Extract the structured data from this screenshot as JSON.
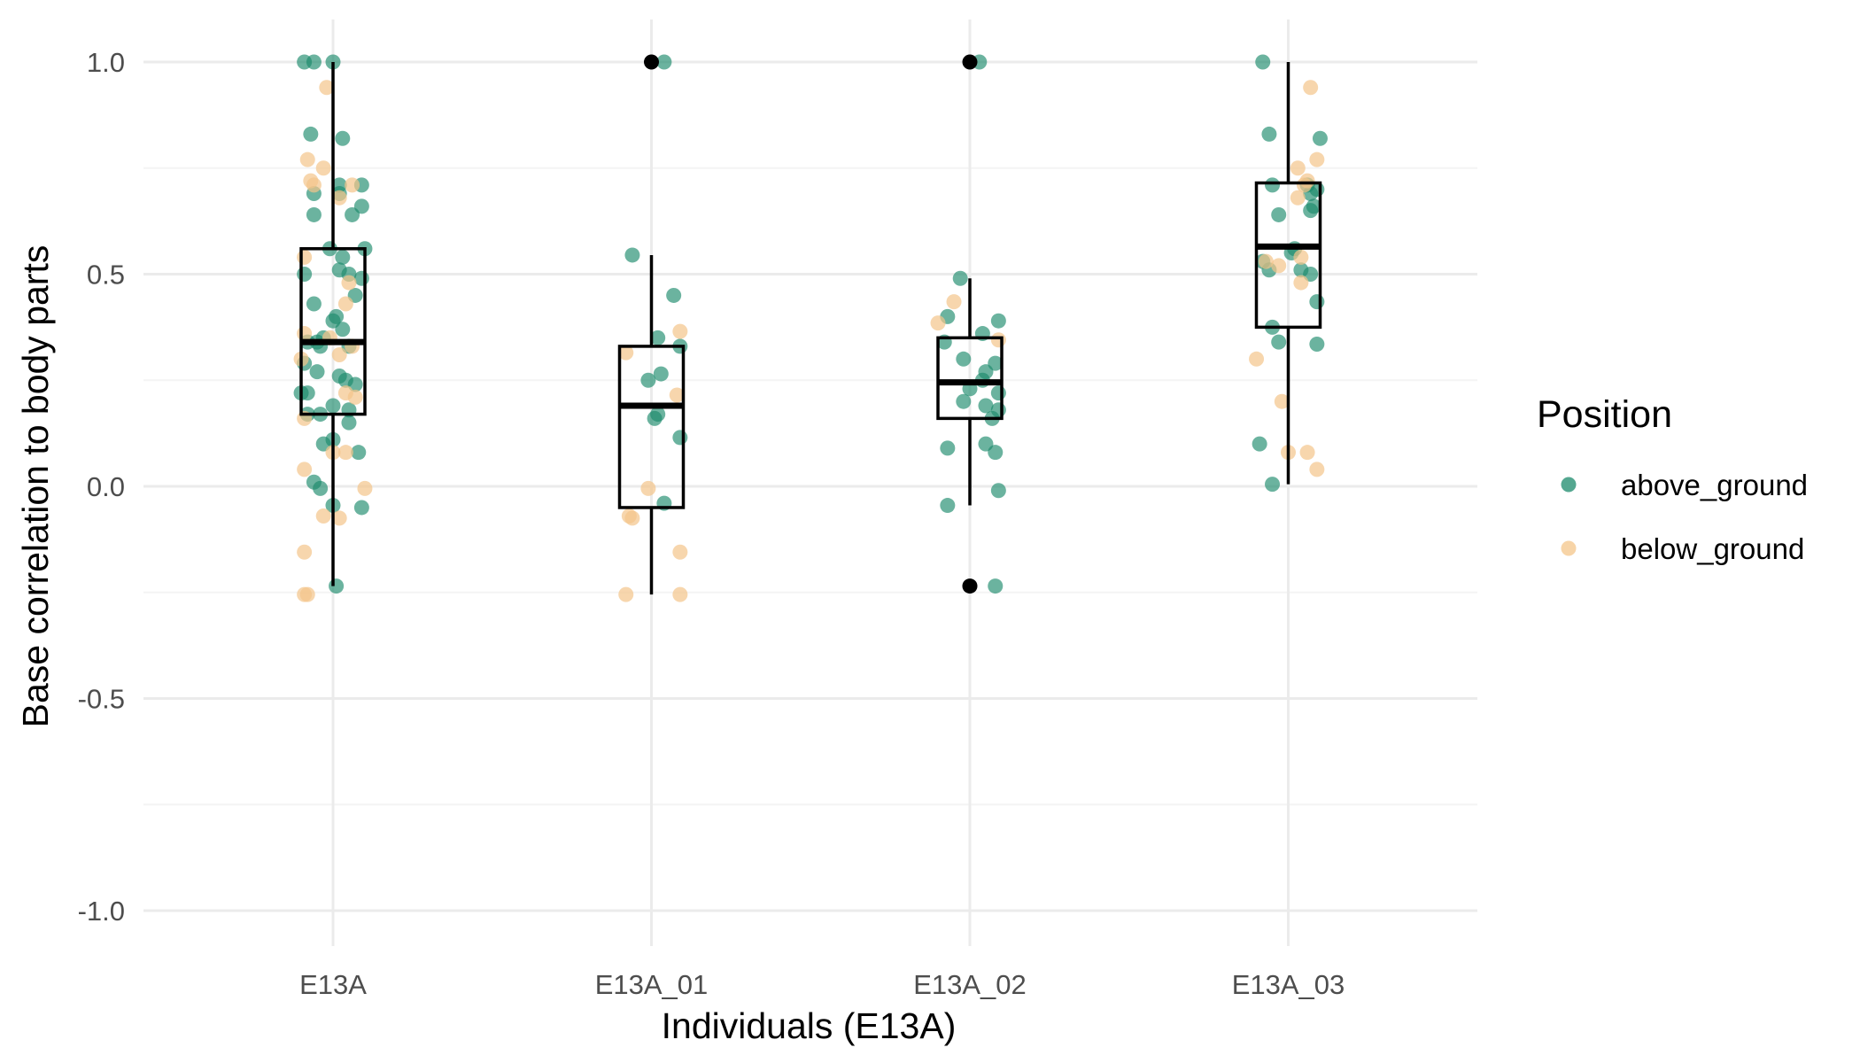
{
  "chart_data": {
    "type": "box",
    "xlabel": "Individuals (E13A)",
    "ylabel": "Base correlation to body parts",
    "ylim": [
      -1.1,
      1.1
    ],
    "yticks": [
      1.0,
      0.5,
      0.0,
      -0.5,
      -1.0
    ],
    "ytick_labels": [
      "1.0",
      "0.5",
      "0.0",
      "-0.5",
      "-1.0"
    ],
    "grid": true,
    "categories": [
      "E13A",
      "E13A_01",
      "E13A_02",
      "E13A_03"
    ],
    "legend": {
      "title": "Position",
      "placement": "right",
      "items": [
        {
          "label": "above_ground",
          "color": "#1b8a6b"
        },
        {
          "label": "below_ground",
          "color": "#f4c58a"
        }
      ]
    },
    "boxes": [
      {
        "category": "E13A",
        "q1": 0.17,
        "median": 0.34,
        "q3": 0.56,
        "whisker_low": -0.235,
        "whisker_high": 1.0,
        "outliers": []
      },
      {
        "category": "E13A_01",
        "q1": -0.05,
        "median": 0.19,
        "q3": 0.33,
        "whisker_low": -0.255,
        "whisker_high": 0.545,
        "outliers": [
          1.0
        ]
      },
      {
        "category": "E13A_02",
        "q1": 0.16,
        "median": 0.245,
        "q3": 0.35,
        "whisker_low": -0.045,
        "whisker_high": 0.49,
        "outliers": [
          1.0,
          -0.235
        ]
      },
      {
        "category": "E13A_03",
        "q1": 0.375,
        "median": 0.565,
        "q3": 0.715,
        "whisker_low": 0.005,
        "whisker_high": 1.0,
        "outliers": []
      }
    ],
    "series": [
      {
        "name": "above_ground",
        "color": "#1b8a6b",
        "points": [
          {
            "category": "E13A",
            "jitter": -0.09,
            "y": 1.0
          },
          {
            "category": "E13A",
            "jitter": -0.06,
            "y": 1.0
          },
          {
            "category": "E13A",
            "jitter": 0.0,
            "y": 1.0
          },
          {
            "category": "E13A",
            "jitter": -0.07,
            "y": 0.83
          },
          {
            "category": "E13A",
            "jitter": 0.03,
            "y": 0.82
          },
          {
            "category": "E13A",
            "jitter": 0.02,
            "y": 0.71
          },
          {
            "category": "E13A",
            "jitter": 0.09,
            "y": 0.71
          },
          {
            "category": "E13A",
            "jitter": -0.06,
            "y": 0.69
          },
          {
            "category": "E13A",
            "jitter": 0.02,
            "y": 0.69
          },
          {
            "category": "E13A",
            "jitter": 0.09,
            "y": 0.66
          },
          {
            "category": "E13A",
            "jitter": -0.06,
            "y": 0.64
          },
          {
            "category": "E13A",
            "jitter": 0.06,
            "y": 0.64
          },
          {
            "category": "E13A",
            "jitter": -0.01,
            "y": 0.56
          },
          {
            "category": "E13A",
            "jitter": 0.1,
            "y": 0.56
          },
          {
            "category": "E13A",
            "jitter": 0.03,
            "y": 0.54
          },
          {
            "category": "E13A",
            "jitter": 0.02,
            "y": 0.51
          },
          {
            "category": "E13A",
            "jitter": 0.05,
            "y": 0.5
          },
          {
            "category": "E13A",
            "jitter": -0.09,
            "y": 0.5
          },
          {
            "category": "E13A",
            "jitter": 0.09,
            "y": 0.49
          },
          {
            "category": "E13A",
            "jitter": 0.07,
            "y": 0.45
          },
          {
            "category": "E13A",
            "jitter": -0.06,
            "y": 0.43
          },
          {
            "category": "E13A",
            "jitter": 0.0,
            "y": 0.39
          },
          {
            "category": "E13A",
            "jitter": 0.01,
            "y": 0.4
          },
          {
            "category": "E13A",
            "jitter": 0.03,
            "y": 0.37
          },
          {
            "category": "E13A",
            "jitter": -0.03,
            "y": 0.35
          },
          {
            "category": "E13A",
            "jitter": -0.08,
            "y": 0.34
          },
          {
            "category": "E13A",
            "jitter": -0.05,
            "y": 0.34
          },
          {
            "category": "E13A",
            "jitter": -0.04,
            "y": 0.33
          },
          {
            "category": "E13A",
            "jitter": 0.05,
            "y": 0.33
          },
          {
            "category": "E13A",
            "jitter": -0.09,
            "y": 0.29
          },
          {
            "category": "E13A",
            "jitter": -0.05,
            "y": 0.27
          },
          {
            "category": "E13A",
            "jitter": 0.02,
            "y": 0.26
          },
          {
            "category": "E13A",
            "jitter": 0.04,
            "y": 0.25
          },
          {
            "category": "E13A",
            "jitter": 0.07,
            "y": 0.24
          },
          {
            "category": "E13A",
            "jitter": -0.1,
            "y": 0.22
          },
          {
            "category": "E13A",
            "jitter": -0.08,
            "y": 0.22
          },
          {
            "category": "E13A",
            "jitter": 0.0,
            "y": 0.19
          },
          {
            "category": "E13A",
            "jitter": 0.05,
            "y": 0.18
          },
          {
            "category": "E13A",
            "jitter": -0.08,
            "y": 0.17
          },
          {
            "category": "E13A",
            "jitter": -0.04,
            "y": 0.17
          },
          {
            "category": "E13A",
            "jitter": 0.05,
            "y": 0.15
          },
          {
            "category": "E13A",
            "jitter": 0.0,
            "y": 0.11
          },
          {
            "category": "E13A",
            "jitter": -0.03,
            "y": 0.1
          },
          {
            "category": "E13A",
            "jitter": 0.08,
            "y": 0.08
          },
          {
            "category": "E13A",
            "jitter": -0.06,
            "y": 0.01
          },
          {
            "category": "E13A",
            "jitter": -0.04,
            "y": -0.005
          },
          {
            "category": "E13A",
            "jitter": 0.0,
            "y": -0.045
          },
          {
            "category": "E13A",
            "jitter": 0.09,
            "y": -0.05
          },
          {
            "category": "E13A",
            "jitter": 0.01,
            "y": -0.235
          },
          {
            "category": "E13A_01",
            "jitter": -0.06,
            "y": 0.545
          },
          {
            "category": "E13A_01",
            "jitter": 0.07,
            "y": 0.45
          },
          {
            "category": "E13A_01",
            "jitter": 0.02,
            "y": 0.35
          },
          {
            "category": "E13A_01",
            "jitter": 0.09,
            "y": 0.33
          },
          {
            "category": "E13A_01",
            "jitter": 0.03,
            "y": 0.265
          },
          {
            "category": "E13A_01",
            "jitter": -0.01,
            "y": 0.25
          },
          {
            "category": "E13A_01",
            "jitter": 0.02,
            "y": 0.17
          },
          {
            "category": "E13A_01",
            "jitter": 0.01,
            "y": 0.16
          },
          {
            "category": "E13A_01",
            "jitter": 0.09,
            "y": 0.115
          },
          {
            "category": "E13A_01",
            "jitter": 0.04,
            "y": -0.04
          },
          {
            "category": "E13A_01",
            "jitter": 0.04,
            "y": 1.0
          },
          {
            "category": "E13A_02",
            "jitter": -0.03,
            "y": 0.49
          },
          {
            "category": "E13A_02",
            "jitter": -0.07,
            "y": 0.4
          },
          {
            "category": "E13A_02",
            "jitter": 0.09,
            "y": 0.39
          },
          {
            "category": "E13A_02",
            "jitter": 0.04,
            "y": 0.36
          },
          {
            "category": "E13A_02",
            "jitter": -0.08,
            "y": 0.34
          },
          {
            "category": "E13A_02",
            "jitter": -0.02,
            "y": 0.3
          },
          {
            "category": "E13A_02",
            "jitter": 0.08,
            "y": 0.29
          },
          {
            "category": "E13A_02",
            "jitter": 0.05,
            "y": 0.27
          },
          {
            "category": "E13A_02",
            "jitter": 0.04,
            "y": 0.25
          },
          {
            "category": "E13A_02",
            "jitter": 0.0,
            "y": 0.23
          },
          {
            "category": "E13A_02",
            "jitter": 0.09,
            "y": 0.22
          },
          {
            "category": "E13A_02",
            "jitter": -0.02,
            "y": 0.2
          },
          {
            "category": "E13A_02",
            "jitter": 0.05,
            "y": 0.19
          },
          {
            "category": "E13A_02",
            "jitter": 0.09,
            "y": 0.18
          },
          {
            "category": "E13A_02",
            "jitter": 0.07,
            "y": 0.16
          },
          {
            "category": "E13A_02",
            "jitter": 0.05,
            "y": 0.1
          },
          {
            "category": "E13A_02",
            "jitter": -0.07,
            "y": 0.09
          },
          {
            "category": "E13A_02",
            "jitter": 0.08,
            "y": 0.08
          },
          {
            "category": "E13A_02",
            "jitter": 0.09,
            "y": -0.01
          },
          {
            "category": "E13A_02",
            "jitter": -0.07,
            "y": -0.045
          },
          {
            "category": "E13A_02",
            "jitter": 0.08,
            "y": -0.235
          },
          {
            "category": "E13A_02",
            "jitter": 0.03,
            "y": 1.0
          },
          {
            "category": "E13A_03",
            "jitter": -0.08,
            "y": 1.0
          },
          {
            "category": "E13A_03",
            "jitter": -0.06,
            "y": 0.83
          },
          {
            "category": "E13A_03",
            "jitter": 0.1,
            "y": 0.82
          },
          {
            "category": "E13A_03",
            "jitter": -0.05,
            "y": 0.71
          },
          {
            "category": "E13A_03",
            "jitter": 0.06,
            "y": 0.71
          },
          {
            "category": "E13A_03",
            "jitter": 0.09,
            "y": 0.7
          },
          {
            "category": "E13A_03",
            "jitter": 0.07,
            "y": 0.69
          },
          {
            "category": "E13A_03",
            "jitter": 0.08,
            "y": 0.66
          },
          {
            "category": "E13A_03",
            "jitter": 0.07,
            "y": 0.65
          },
          {
            "category": "E13A_03",
            "jitter": -0.03,
            "y": 0.64
          },
          {
            "category": "E13A_03",
            "jitter": 0.02,
            "y": 0.56
          },
          {
            "category": "E13A_03",
            "jitter": 0.01,
            "y": 0.55
          },
          {
            "category": "E13A_03",
            "jitter": -0.08,
            "y": 0.53
          },
          {
            "category": "E13A_03",
            "jitter": -0.06,
            "y": 0.51
          },
          {
            "category": "E13A_03",
            "jitter": 0.04,
            "y": 0.51
          },
          {
            "category": "E13A_03",
            "jitter": 0.07,
            "y": 0.5
          },
          {
            "category": "E13A_03",
            "jitter": 0.09,
            "y": 0.435
          },
          {
            "category": "E13A_03",
            "jitter": -0.05,
            "y": 0.375
          },
          {
            "category": "E13A_03",
            "jitter": -0.03,
            "y": 0.34
          },
          {
            "category": "E13A_03",
            "jitter": 0.09,
            "y": 0.335
          },
          {
            "category": "E13A_03",
            "jitter": -0.09,
            "y": 0.1
          },
          {
            "category": "E13A_03",
            "jitter": -0.05,
            "y": 0.005
          }
        ]
      },
      {
        "name": "below_ground",
        "color": "#f4c58a",
        "points": [
          {
            "category": "E13A",
            "jitter": -0.02,
            "y": 0.94
          },
          {
            "category": "E13A",
            "jitter": -0.08,
            "y": 0.77
          },
          {
            "category": "E13A",
            "jitter": -0.03,
            "y": 0.75
          },
          {
            "category": "E13A",
            "jitter": -0.07,
            "y": 0.72
          },
          {
            "category": "E13A",
            "jitter": -0.06,
            "y": 0.71
          },
          {
            "category": "E13A",
            "jitter": 0.06,
            "y": 0.71
          },
          {
            "category": "E13A",
            "jitter": 0.02,
            "y": 0.68
          },
          {
            "category": "E13A",
            "jitter": -0.09,
            "y": 0.54
          },
          {
            "category": "E13A",
            "jitter": 0.05,
            "y": 0.48
          },
          {
            "category": "E13A",
            "jitter": 0.04,
            "y": 0.43
          },
          {
            "category": "E13A",
            "jitter": -0.09,
            "y": 0.36
          },
          {
            "category": "E13A",
            "jitter": -0.01,
            "y": 0.35
          },
          {
            "category": "E13A",
            "jitter": 0.06,
            "y": 0.33
          },
          {
            "category": "E13A",
            "jitter": 0.02,
            "y": 0.31
          },
          {
            "category": "E13A",
            "jitter": -0.1,
            "y": 0.3
          },
          {
            "category": "E13A",
            "jitter": 0.04,
            "y": 0.22
          },
          {
            "category": "E13A",
            "jitter": 0.07,
            "y": 0.21
          },
          {
            "category": "E13A",
            "jitter": -0.09,
            "y": 0.16
          },
          {
            "category": "E13A",
            "jitter": 0.0,
            "y": 0.08
          },
          {
            "category": "E13A",
            "jitter": 0.04,
            "y": 0.08
          },
          {
            "category": "E13A",
            "jitter": -0.09,
            "y": 0.04
          },
          {
            "category": "E13A",
            "jitter": 0.1,
            "y": -0.005
          },
          {
            "category": "E13A",
            "jitter": -0.03,
            "y": -0.07
          },
          {
            "category": "E13A",
            "jitter": 0.02,
            "y": -0.075
          },
          {
            "category": "E13A",
            "jitter": -0.09,
            "y": -0.155
          },
          {
            "category": "E13A",
            "jitter": -0.09,
            "y": -0.255
          },
          {
            "category": "E13A",
            "jitter": -0.08,
            "y": -0.255
          },
          {
            "category": "E13A_01",
            "jitter": -0.08,
            "y": 0.315
          },
          {
            "category": "E13A_01",
            "jitter": 0.09,
            "y": 0.365
          },
          {
            "category": "E13A_01",
            "jitter": 0.08,
            "y": 0.215
          },
          {
            "category": "E13A_01",
            "jitter": -0.01,
            "y": -0.005
          },
          {
            "category": "E13A_01",
            "jitter": -0.07,
            "y": -0.07
          },
          {
            "category": "E13A_01",
            "jitter": -0.06,
            "y": -0.075
          },
          {
            "category": "E13A_01",
            "jitter": 0.09,
            "y": -0.155
          },
          {
            "category": "E13A_01",
            "jitter": -0.08,
            "y": -0.255
          },
          {
            "category": "E13A_01",
            "jitter": 0.09,
            "y": -0.255
          },
          {
            "category": "E13A_02",
            "jitter": -0.1,
            "y": 0.385
          },
          {
            "category": "E13A_02",
            "jitter": -0.05,
            "y": 0.435
          },
          {
            "category": "E13A_02",
            "jitter": 0.09,
            "y": 0.345
          },
          {
            "category": "E13A_03",
            "jitter": 0.07,
            "y": 0.94
          },
          {
            "category": "E13A_03",
            "jitter": 0.09,
            "y": 0.77
          },
          {
            "category": "E13A_03",
            "jitter": 0.03,
            "y": 0.75
          },
          {
            "category": "E13A_03",
            "jitter": 0.06,
            "y": 0.72
          },
          {
            "category": "E13A_03",
            "jitter": 0.05,
            "y": 0.71
          },
          {
            "category": "E13A_03",
            "jitter": 0.03,
            "y": 0.68
          },
          {
            "category": "E13A_03",
            "jitter": 0.04,
            "y": 0.54
          },
          {
            "category": "E13A_03",
            "jitter": -0.03,
            "y": 0.52
          },
          {
            "category": "E13A_03",
            "jitter": 0.04,
            "y": 0.48
          },
          {
            "category": "E13A_03",
            "jitter": -0.07,
            "y": 0.53
          },
          {
            "category": "E13A_03",
            "jitter": -0.1,
            "y": 0.3
          },
          {
            "category": "E13A_03",
            "jitter": -0.02,
            "y": 0.2
          },
          {
            "category": "E13A_03",
            "jitter": 0.0,
            "y": 0.08
          },
          {
            "category": "E13A_03",
            "jitter": 0.06,
            "y": 0.08
          },
          {
            "category": "E13A_03",
            "jitter": 0.09,
            "y": 0.04
          }
        ]
      }
    ]
  }
}
